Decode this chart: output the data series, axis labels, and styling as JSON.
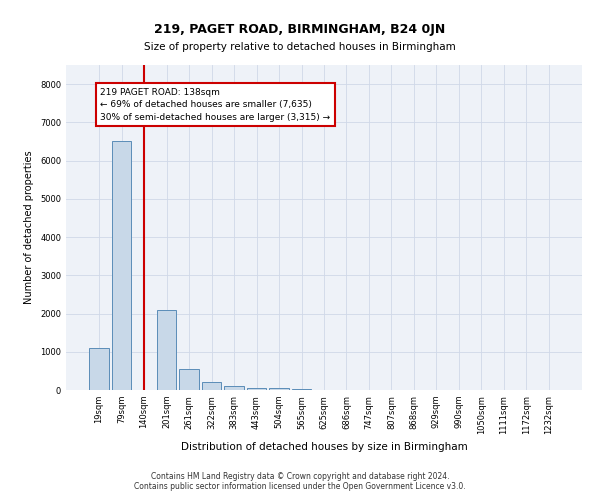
{
  "title": "219, PAGET ROAD, BIRMINGHAM, B24 0JN",
  "subtitle": "Size of property relative to detached houses in Birmingham",
  "xlabel": "Distribution of detached houses by size in Birmingham",
  "ylabel": "Number of detached properties",
  "footer1": "Contains HM Land Registry data © Crown copyright and database right 2024.",
  "footer2": "Contains public sector information licensed under the Open Government Licence v3.0.",
  "categories": [
    "19sqm",
    "79sqm",
    "140sqm",
    "201sqm",
    "261sqm",
    "322sqm",
    "383sqm",
    "443sqm",
    "504sqm",
    "565sqm",
    "625sqm",
    "686sqm",
    "747sqm",
    "807sqm",
    "868sqm",
    "929sqm",
    "990sqm",
    "1050sqm",
    "1111sqm",
    "1172sqm",
    "1232sqm"
  ],
  "values": [
    1100,
    6500,
    0,
    2100,
    550,
    200,
    100,
    55,
    50,
    20,
    5,
    0,
    0,
    0,
    0,
    0,
    0,
    0,
    0,
    0,
    0
  ],
  "bar_color": "#c8d8e8",
  "bar_edge_color": "#5b8db8",
  "grid_color": "#d0d8e8",
  "background_color": "#eef2f8",
  "annotation_text": "219 PAGET ROAD: 138sqm\n← 69% of detached houses are smaller (7,635)\n30% of semi-detached houses are larger (3,315) →",
  "vline_color": "#cc0000",
  "annotation_box_edge": "#cc0000",
  "ylim": [
    0,
    8500
  ],
  "yticks": [
    0,
    1000,
    2000,
    3000,
    4000,
    5000,
    6000,
    7000,
    8000
  ],
  "title_fontsize": 9,
  "subtitle_fontsize": 7.5,
  "ylabel_fontsize": 7,
  "xlabel_fontsize": 7.5,
  "tick_fontsize": 6,
  "annotation_fontsize": 6.5,
  "footer_fontsize": 5.5
}
